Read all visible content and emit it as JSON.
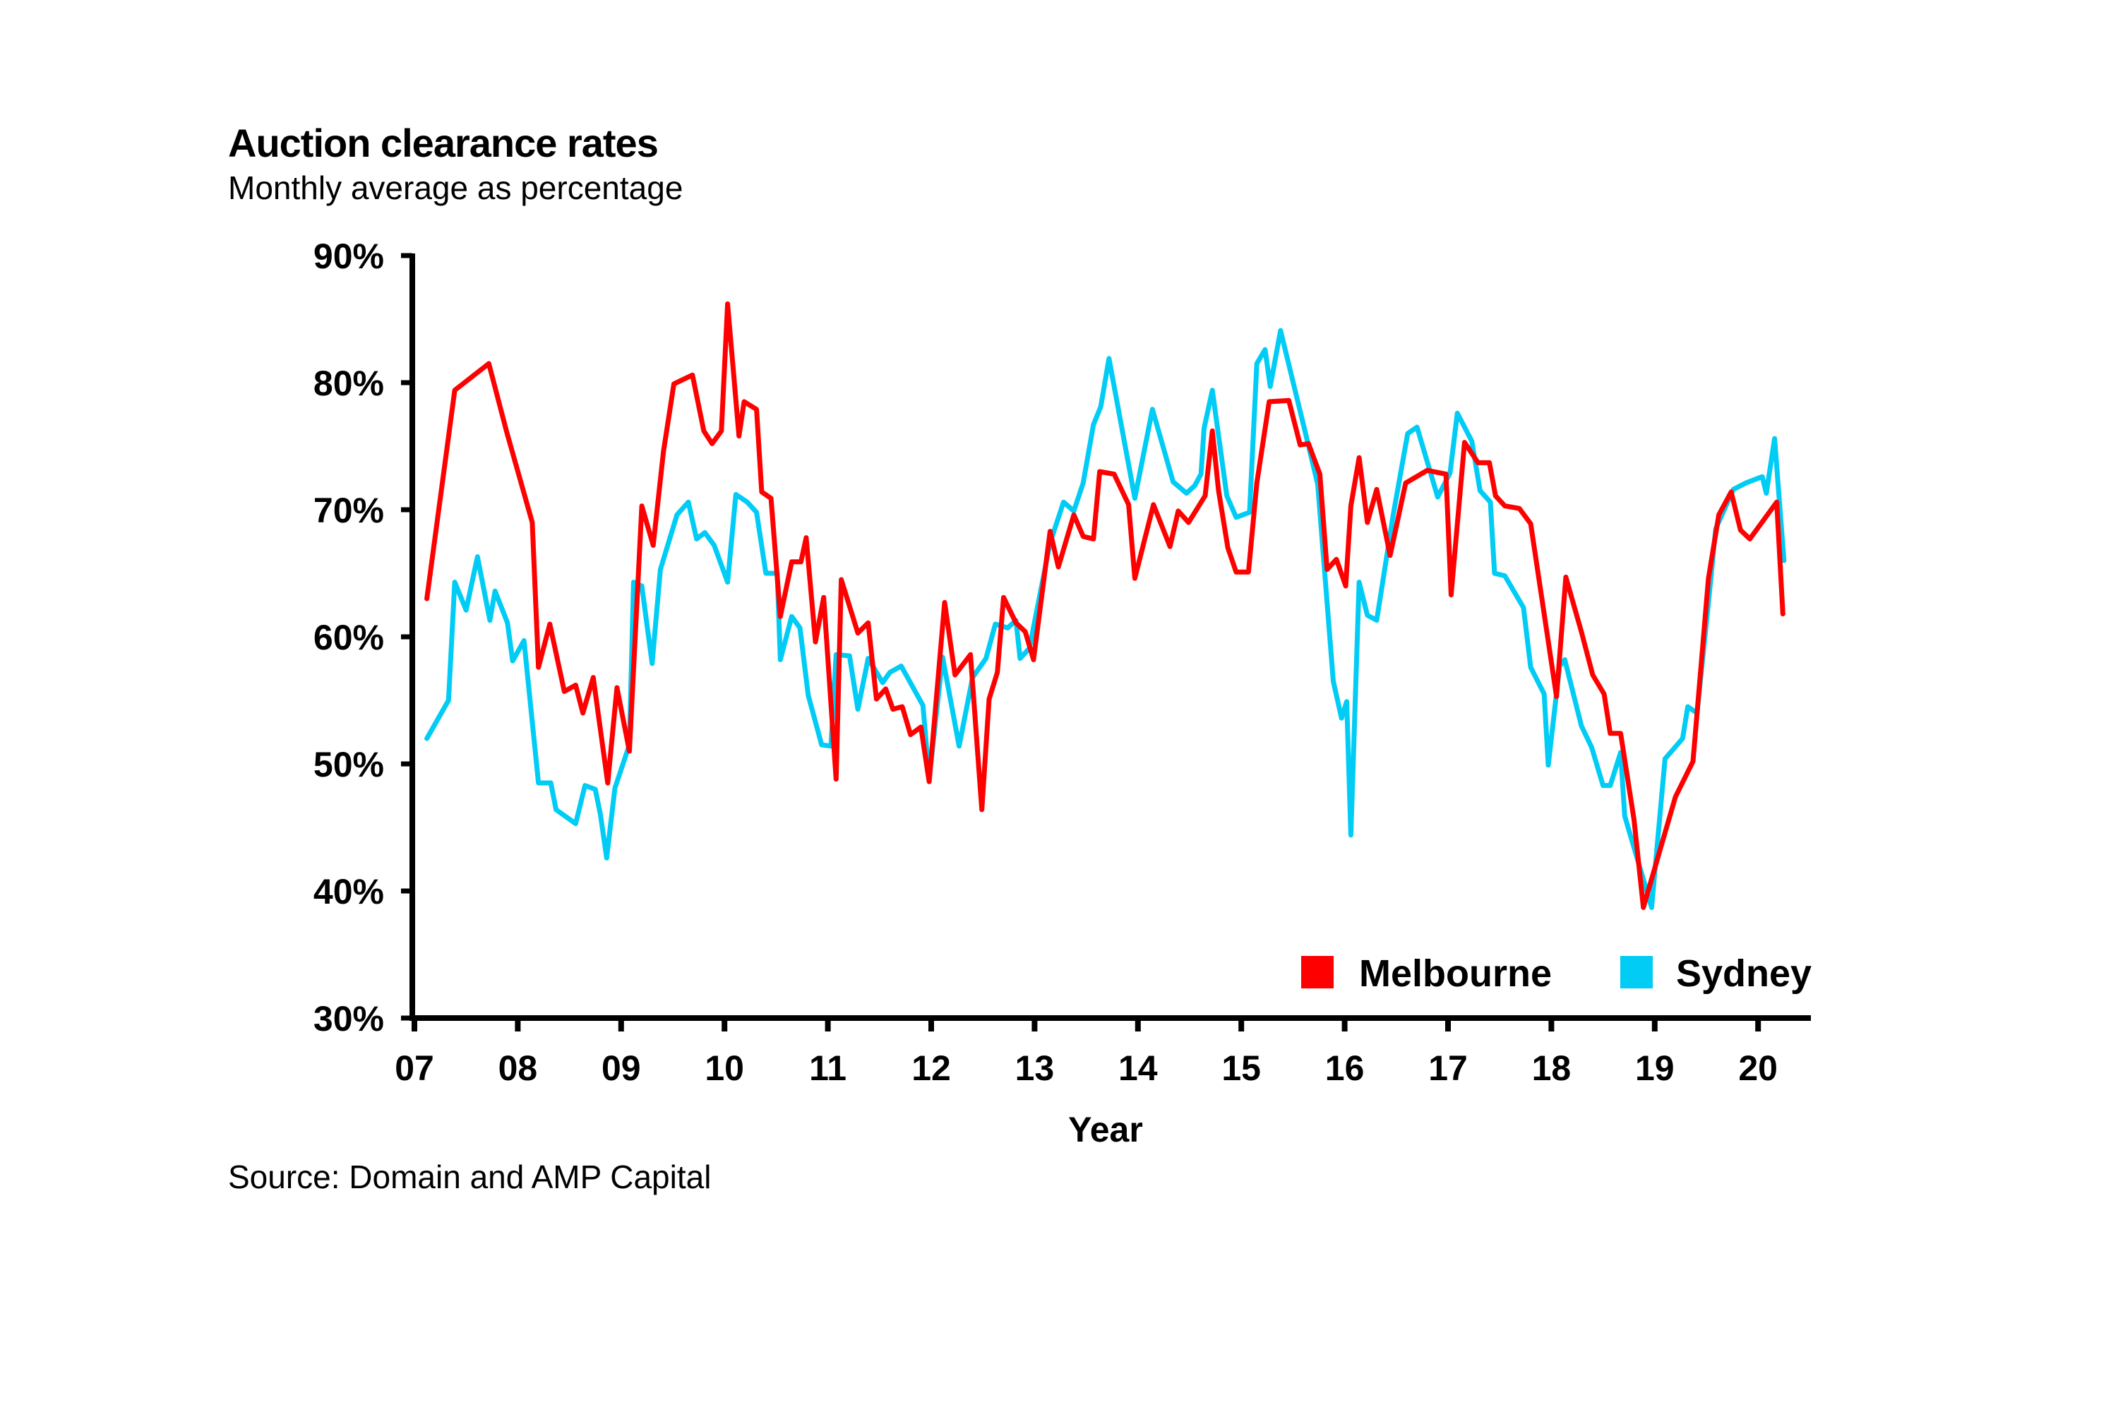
{
  "chart_data": {
    "type": "line",
    "title": "Auction clearance rates",
    "subtitle": "Monthly average as percentage",
    "xlabel": "Year",
    "ylabel": "",
    "source": "Source: Domain and AMP Capital",
    "xlim": [
      0,
      13.45
    ],
    "ylim": [
      30,
      90
    ],
    "x_unit": "years since start of 2007",
    "y_ticks": [
      {
        "value": 30,
        "label": "30%"
      },
      {
        "value": 40,
        "label": "40%"
      },
      {
        "value": 50,
        "label": "50%"
      },
      {
        "value": 60,
        "label": "60%"
      },
      {
        "value": 70,
        "label": "70%"
      },
      {
        "value": 80,
        "label": "80%"
      },
      {
        "value": 90,
        "label": "90%"
      }
    ],
    "x_ticks": [
      {
        "value": 0,
        "label": "07"
      },
      {
        "value": 1,
        "label": "08"
      },
      {
        "value": 2,
        "label": "09"
      },
      {
        "value": 3,
        "label": "10"
      },
      {
        "value": 4,
        "label": "11"
      },
      {
        "value": 5,
        "label": "12"
      },
      {
        "value": 6,
        "label": "13"
      },
      {
        "value": 7,
        "label": "14"
      },
      {
        "value": 8,
        "label": "15"
      },
      {
        "value": 9,
        "label": "16"
      },
      {
        "value": 10,
        "label": "17"
      },
      {
        "value": 11,
        "label": "18"
      },
      {
        "value": 12,
        "label": "19"
      },
      {
        "value": 13,
        "label": "20"
      }
    ],
    "grid": false,
    "legend_position": "bottom-right",
    "series": [
      {
        "name": "Melbourne",
        "color": "#ff0000",
        "x": [
          0.12,
          0.39,
          0.72,
          0.89,
          1.14,
          1.2,
          1.31,
          1.45,
          1.56,
          1.63,
          1.73,
          1.87,
          1.96,
          2.08,
          2.2,
          2.31,
          2.41,
          2.51,
          2.69,
          2.8,
          2.88,
          2.97,
          3.03,
          3.14,
          3.19,
          3.31,
          3.36,
          3.45,
          3.54,
          3.65,
          3.74,
          3.79,
          3.88,
          3.96,
          4.08,
          4.13,
          4.29,
          4.39,
          4.47,
          4.56,
          4.63,
          4.72,
          4.8,
          4.9,
          4.98,
          5.13,
          5.23,
          5.38,
          5.49,
          5.56,
          5.64,
          5.7,
          5.82,
          5.91,
          5.99,
          6.15,
          6.23,
          6.38,
          6.47,
          6.57,
          6.63,
          6.77,
          6.91,
          6.97,
          7.15,
          7.31,
          7.39,
          7.49,
          7.65,
          7.72,
          7.78,
          7.87,
          7.95,
          8.07,
          8.15,
          8.27,
          8.46,
          8.57,
          8.65,
          8.76,
          8.83,
          8.92,
          9.01,
          9.06,
          9.14,
          9.22,
          9.31,
          9.44,
          9.59,
          9.8,
          9.98,
          10.03,
          10.16,
          10.29,
          10.4,
          10.46,
          10.55,
          10.69,
          10.8,
          11.05,
          11.14,
          11.29,
          11.4,
          11.51,
          11.57,
          11.67,
          11.8,
          11.89,
          12.2,
          12.37,
          12.52,
          12.62,
          12.74,
          12.83,
          12.92,
          13.18,
          13.24
        ],
        "values": [
          63.0,
          79.4,
          81.5,
          76.2,
          69.0,
          57.6,
          61.0,
          55.7,
          56.2,
          54.0,
          56.8,
          48.5,
          56.0,
          51.0,
          70.3,
          67.2,
          74.6,
          79.9,
          80.6,
          76.2,
          75.2,
          76.2,
          86.2,
          75.8,
          78.5,
          77.9,
          71.4,
          70.9,
          61.6,
          65.9,
          65.9,
          67.8,
          59.6,
          63.1,
          48.8,
          64.5,
          60.3,
          61.1,
          55.1,
          55.9,
          54.3,
          54.5,
          52.3,
          52.9,
          48.6,
          62.7,
          57.0,
          58.6,
          46.4,
          55.1,
          57.2,
          63.1,
          61.1,
          60.4,
          58.2,
          68.3,
          65.5,
          69.6,
          67.9,
          67.7,
          73.0,
          72.8,
          70.4,
          64.6,
          70.4,
          67.1,
          69.9,
          69.0,
          71.1,
          76.2,
          71.5,
          67.0,
          65.1,
          65.1,
          72.1,
          78.5,
          78.6,
          75.1,
          75.2,
          72.8,
          65.3,
          66.1,
          64.0,
          70.3,
          74.1,
          69.0,
          71.6,
          66.4,
          72.1,
          73.1,
          72.8,
          63.3,
          75.3,
          73.7,
          73.7,
          71.1,
          70.3,
          70.1,
          68.9,
          55.3,
          64.7,
          60.4,
          57.0,
          55.5,
          52.4,
          52.4,
          45.6,
          38.7,
          47.4,
          50.2,
          64.6,
          69.6,
          71.4,
          68.4,
          67.7,
          70.6,
          61.8
        ]
      },
      {
        "name": "Sydney",
        "color": "#00ccf5",
        "x": [
          0.12,
          0.33,
          0.39,
          0.5,
          0.61,
          0.73,
          0.78,
          0.9,
          0.95,
          1.06,
          1.2,
          1.32,
          1.37,
          1.56,
          1.65,
          1.75,
          1.8,
          1.86,
          1.94,
          2.08,
          2.12,
          2.2,
          2.3,
          2.38,
          2.54,
          2.65,
          2.73,
          2.81,
          2.9,
          3.03,
          3.11,
          3.22,
          3.31,
          3.4,
          3.51,
          3.54,
          3.65,
          3.73,
          3.81,
          3.94,
          4.03,
          4.08,
          4.21,
          4.29,
          4.39,
          4.53,
          4.6,
          4.71,
          4.92,
          4.98,
          5.11,
          5.27,
          5.4,
          5.53,
          5.62,
          5.74,
          5.82,
          5.86,
          5.95,
          6.15,
          6.28,
          6.38,
          6.47,
          6.57,
          6.64,
          6.72,
          6.97,
          7.14,
          7.34,
          7.47,
          7.55,
          7.61,
          7.64,
          7.72,
          7.86,
          7.95,
          8.08,
          8.15,
          8.23,
          8.28,
          8.38,
          8.61,
          8.74,
          8.89,
          8.97,
          9.02,
          9.06,
          9.14,
          9.22,
          9.31,
          9.47,
          9.61,
          9.7,
          9.9,
          10.02,
          10.09,
          10.23,
          10.31,
          10.41,
          10.45,
          10.55,
          10.73,
          10.8,
          10.93,
          10.97,
          11.08,
          11.13,
          11.29,
          11.39,
          11.5,
          11.57,
          11.67,
          11.71,
          11.97,
          12.1,
          12.27,
          12.32,
          12.41,
          12.52,
          12.59,
          12.76,
          12.88,
          13.04,
          13.08,
          13.16,
          13.25
        ],
        "values": [
          52.0,
          55.0,
          64.3,
          62.1,
          66.3,
          61.3,
          63.6,
          61.1,
          58.1,
          59.7,
          48.5,
          48.5,
          46.4,
          45.3,
          48.3,
          48.0,
          46.0,
          42.6,
          48.1,
          51.5,
          64.3,
          64.0,
          57.9,
          65.3,
          69.6,
          70.6,
          67.7,
          68.2,
          67.2,
          64.3,
          71.2,
          70.6,
          69.8,
          65.0,
          65.0,
          58.2,
          61.6,
          60.7,
          55.4,
          51.5,
          51.4,
          58.6,
          58.5,
          54.3,
          58.3,
          56.4,
          57.2,
          57.7,
          54.6,
          48.8,
          58.4,
          51.4,
          56.8,
          58.3,
          61.0,
          60.7,
          61.3,
          58.3,
          59.1,
          67.4,
          70.6,
          69.9,
          72.1,
          76.7,
          78.1,
          81.9,
          70.9,
          77.9,
          72.2,
          71.3,
          71.9,
          72.8,
          76.4,
          79.4,
          71.1,
          69.4,
          69.8,
          81.5,
          82.6,
          79.7,
          84.1,
          76.4,
          72.0,
          56.5,
          53.6,
          54.9,
          44.4,
          64.3,
          61.7,
          61.3,
          69.6,
          76.0,
          76.5,
          71.0,
          72.9,
          77.6,
          75.4,
          71.5,
          70.6,
          65.0,
          64.8,
          62.3,
          57.6,
          55.5,
          49.9,
          57.7,
          58.2,
          53.0,
          51.3,
          48.3,
          48.3,
          50.9,
          45.9,
          38.7,
          50.4,
          52.0,
          54.5,
          54.0,
          62.7,
          68.5,
          71.6,
          72.1,
          72.6,
          71.3,
          75.6,
          66.0
        ]
      }
    ]
  }
}
